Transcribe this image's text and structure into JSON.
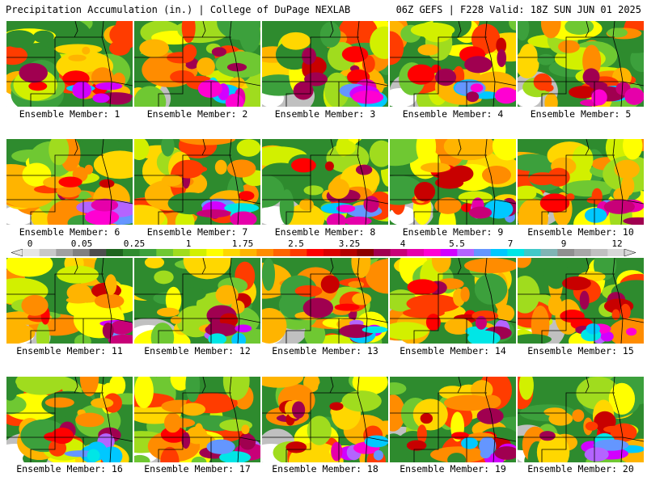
{
  "header": {
    "title_left": "Precipitation Accumulation (in.) | College of DuPage NEXLAB",
    "title_right": "06Z GEFS | F228 Valid: 18Z SUN JUN 01 2025"
  },
  "members": [
    {
      "label": "Ensemble Member: 1"
    },
    {
      "label": "Ensemble Member: 2"
    },
    {
      "label": "Ensemble Member: 3"
    },
    {
      "label": "Ensemble Member: 4"
    },
    {
      "label": "Ensemble Member: 5"
    },
    {
      "label": "Ensemble Member: 6"
    },
    {
      "label": "Ensemble Member: 7"
    },
    {
      "label": "Ensemble Member: 8"
    },
    {
      "label": "Ensemble Member: 9"
    },
    {
      "label": "Ensemble Member: 10"
    },
    {
      "label": "Ensemble Member: 11"
    },
    {
      "label": "Ensemble Member: 12"
    },
    {
      "label": "Ensemble Member: 13"
    },
    {
      "label": "Ensemble Member: 14"
    },
    {
      "label": "Ensemble Member: 15"
    },
    {
      "label": "Ensemble Member: 16"
    },
    {
      "label": "Ensemble Member: 17"
    },
    {
      "label": "Ensemble Member: 18"
    },
    {
      "label": "Ensemble Member: 19"
    },
    {
      "label": "Ensemble Member: 20"
    }
  ],
  "colorbar": {
    "tick_labels": [
      "0",
      "0.05",
      "0.25",
      "1",
      "1.75",
      "2.5",
      "3.25",
      "4",
      "5.5",
      "7",
      "9",
      "12"
    ],
    "colors": [
      "#e6e6e6",
      "#c8c8c8",
      "#a0a0a0",
      "#808080",
      "#4d4d4d",
      "#1e641e",
      "#2e8b2e",
      "#3ca03c",
      "#6fc832",
      "#a0dc1e",
      "#d2f000",
      "#ffff00",
      "#ffd700",
      "#ffb400",
      "#ff8c00",
      "#ff6400",
      "#ff3c00",
      "#ff0000",
      "#dc0000",
      "#b40000",
      "#8c0000",
      "#a00050",
      "#c80078",
      "#e600aa",
      "#ff00d2",
      "#d200ff",
      "#b464ff",
      "#6496ff",
      "#00c8ff",
      "#00e6e6",
      "#40c8c8",
      "#80b4b4",
      "#909090",
      "#a8a8a8",
      "#c0c0c0",
      "#d8d8d8"
    ]
  }
}
